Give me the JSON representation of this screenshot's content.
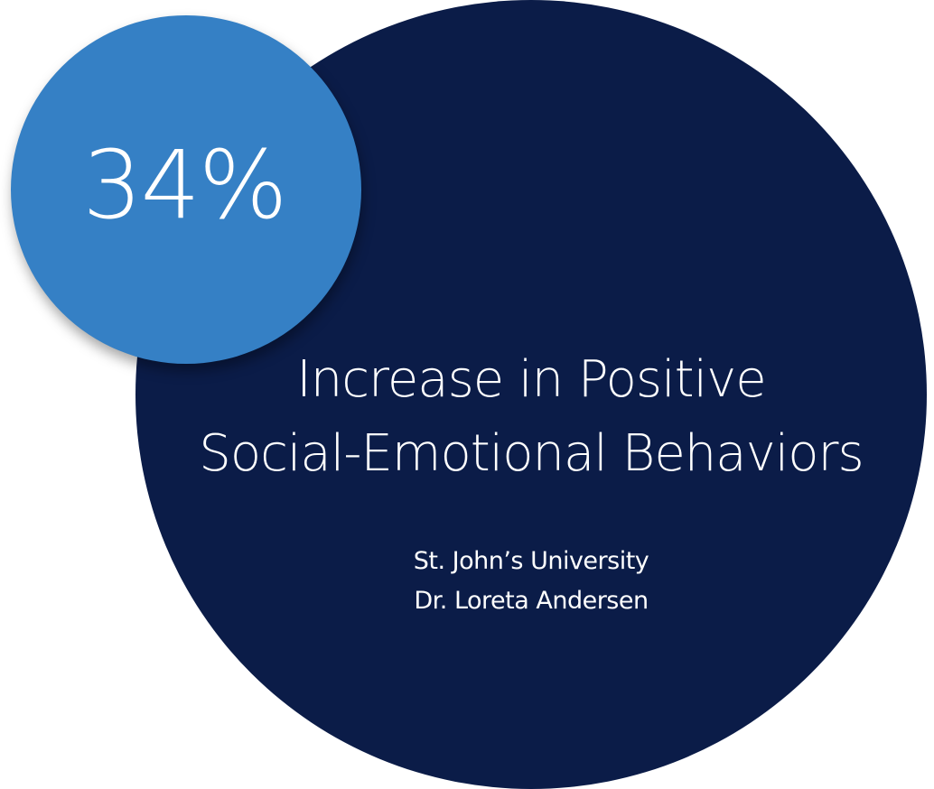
{
  "colors": {
    "navy": "#0b1c48",
    "blue": "#3580c5",
    "text": "#ffffff"
  },
  "stat": {
    "value": "34%"
  },
  "headline": {
    "line1": "Increase in Positive",
    "line2": "Social-Emotional Behaviors"
  },
  "source": {
    "institution": "St. John’s University",
    "author": "Dr. Loreta Andersen"
  }
}
